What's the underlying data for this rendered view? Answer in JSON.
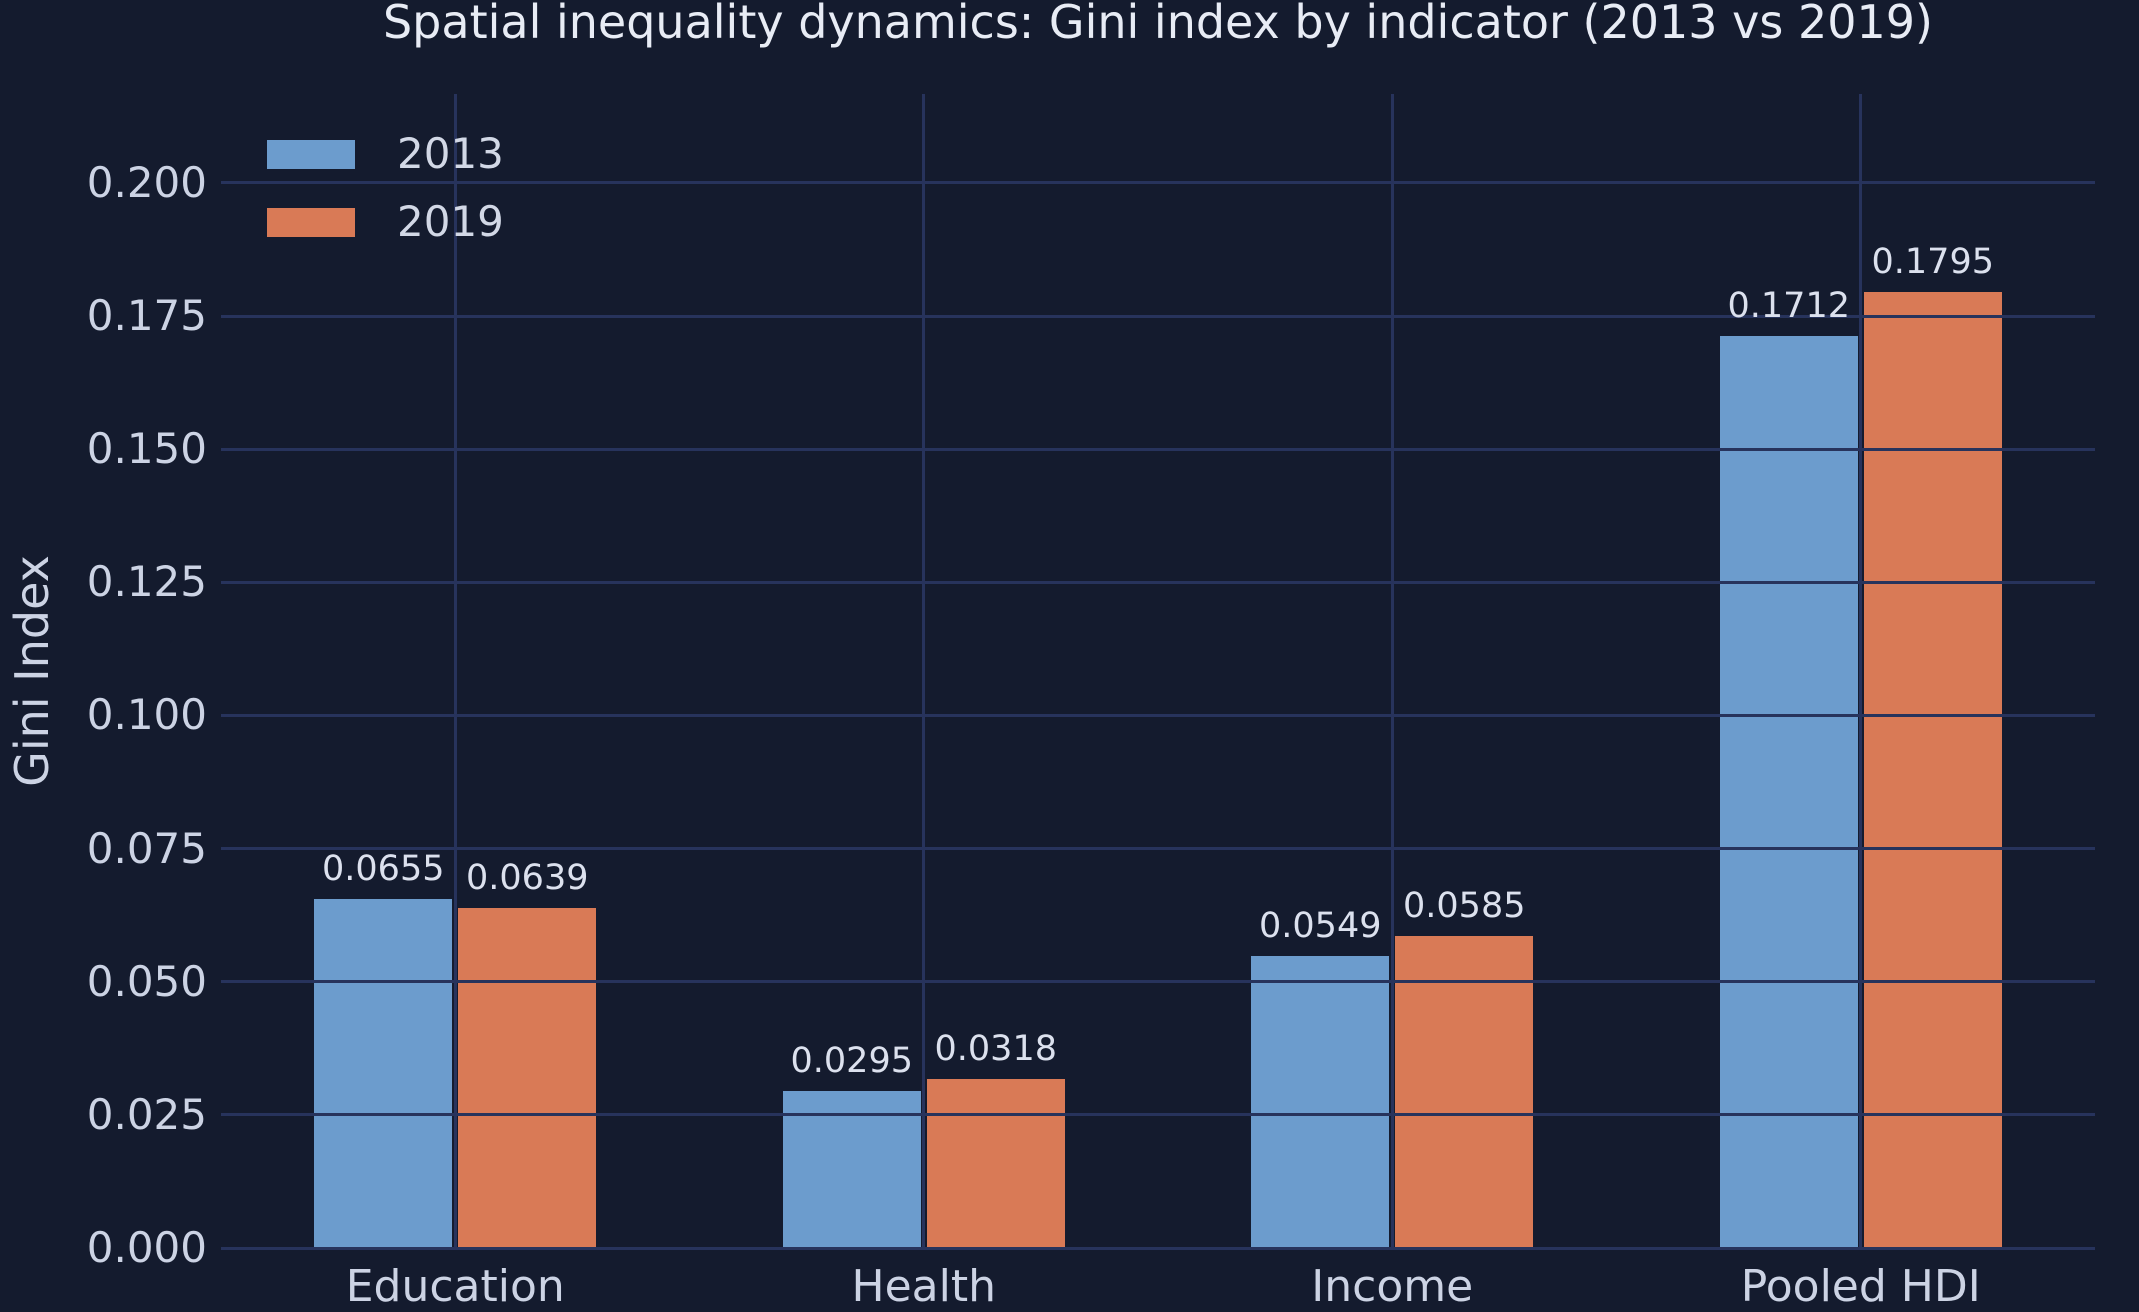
{
  "chart_data": {
    "type": "bar",
    "title": "Spatial inequality dynamics: Gini index by indicator (2013 vs 2019)",
    "ylabel": "Gini Index",
    "xlabel": "",
    "categories": [
      "Education",
      "Health",
      "Income",
      "Pooled HDI"
    ],
    "series": [
      {
        "name": "2013",
        "color": "#6c9ccd",
        "values": [
          0.0655,
          0.0295,
          0.0549,
          0.1712
        ]
      },
      {
        "name": "2019",
        "color": "#d97a56",
        "values": [
          0.0639,
          0.0318,
          0.0585,
          0.1795
        ]
      }
    ],
    "value_labels": [
      [
        "0.0655",
        "0.0295",
        "0.0549",
        "0.1712"
      ],
      [
        "0.0639",
        "0.0318",
        "0.0585",
        "0.1795"
      ]
    ],
    "ytick_labels": [
      "0.000",
      "0.025",
      "0.050",
      "0.075",
      "0.100",
      "0.125",
      "0.150",
      "0.175",
      "0.200"
    ],
    "ylim": [
      0,
      0.2167
    ],
    "grid": true,
    "grid_on_top": true,
    "legend_position": "upper left",
    "colors": {
      "background": "#141b2e",
      "gridline": "#27335c",
      "text": "#ccd3e4",
      "title_text": "#e8ecf5",
      "value_label_text": "#dce1ee"
    }
  },
  "legend": {
    "items": [
      {
        "label": "2013"
      },
      {
        "label": "2019"
      }
    ]
  }
}
